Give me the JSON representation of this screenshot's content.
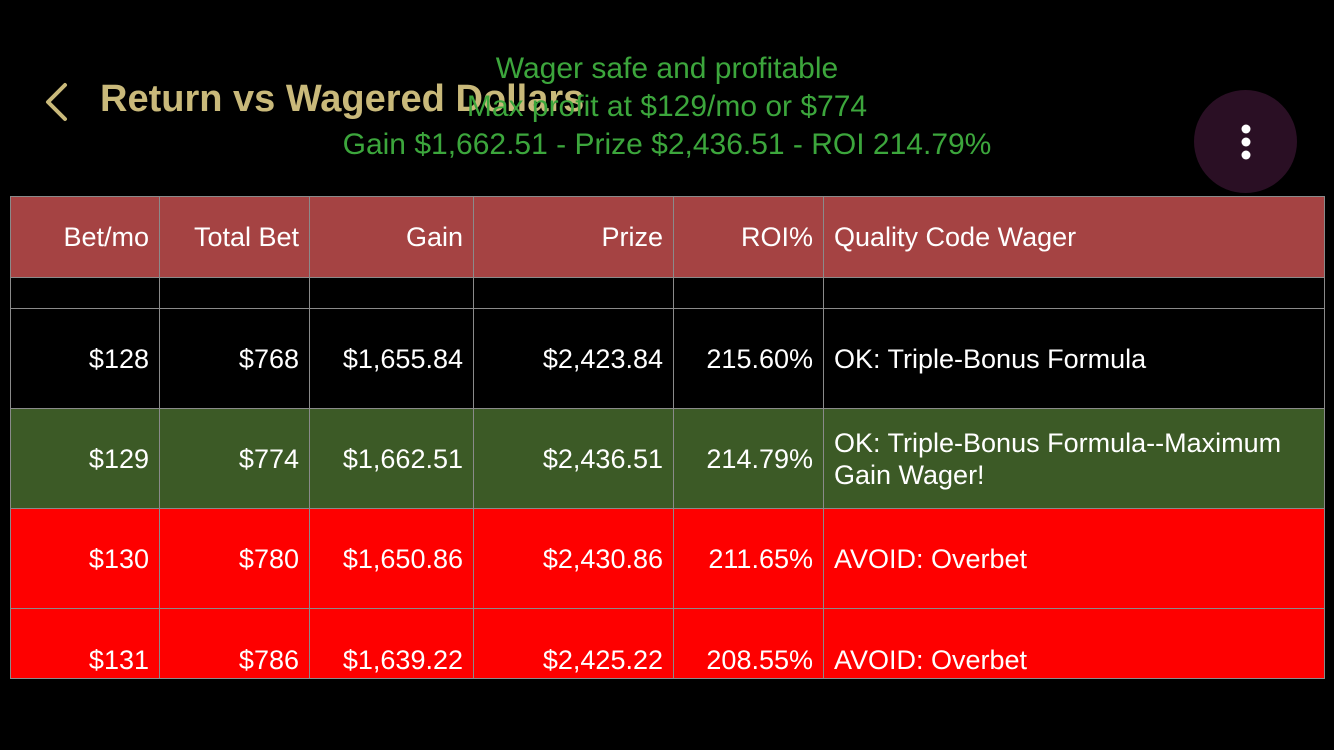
{
  "nav": {
    "title": "Return vs Wagered Dollars"
  },
  "summary": {
    "line1": "Wager safe and profitable",
    "line2": "Max profit at $129/mo or $774",
    "line3": "Gain $1,662.51 - Prize $2,436.51 - ROI 214.79%"
  },
  "colors": {
    "title": "#c9b97a",
    "summary_text": "#3ca63c",
    "header_bg": "#a54343",
    "ok_row": "#000000",
    "best_row": "#3c5a26",
    "avoid_row": "#fe0000",
    "menu_button_bg": "#2a0f24"
  },
  "icons": {
    "back": "chevron-left-icon",
    "menu": "more-vertical-icon"
  },
  "table": {
    "headers": [
      "Bet/mo",
      "Total Bet",
      "Gain",
      "Prize",
      "ROI%",
      "Quality Code Wager"
    ],
    "rows": [
      {
        "bet_mo": "$128",
        "total_bet": "$768",
        "gain": "$1,655.84",
        "prize": "$2,423.84",
        "roi": "215.60%",
        "quality": "OK: Triple-Bonus Formula"
      },
      {
        "bet_mo": "$129",
        "total_bet": "$774",
        "gain": "$1,662.51",
        "prize": "$2,436.51",
        "roi": "214.79%",
        "quality": "OK: Triple-Bonus Formula--Maximum Gain Wager!"
      },
      {
        "bet_mo": "$130",
        "total_bet": "$780",
        "gain": "$1,650.86",
        "prize": "$2,430.86",
        "roi": "211.65%",
        "quality": "AVOID:  Overbet"
      },
      {
        "bet_mo": "$131",
        "total_bet": "$786",
        "gain": "$1,639.22",
        "prize": "$2,425.22",
        "roi": "208.55%",
        "quality": "AVOID:  Overbet"
      }
    ]
  }
}
